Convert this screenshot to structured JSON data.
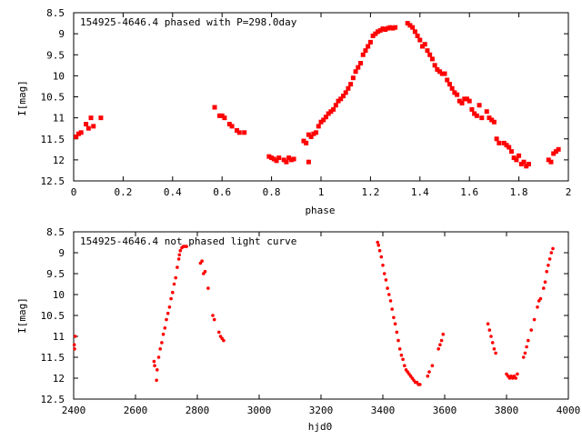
{
  "chart_data": [
    {
      "type": "scatter",
      "title": "154925-4646.4 phased with P=298.0day",
      "xlabel": "phase",
      "ylabel": "I[mag]",
      "xlim": [
        0,
        2
      ],
      "ylim": [
        12.5,
        8.5
      ],
      "y_inverted": true,
      "xticks": [
        "0",
        "0.2",
        "0.4",
        "0.6",
        "0.8",
        "1",
        "1.2",
        "1.4",
        "1.6",
        "1.8",
        "2"
      ],
      "yticks": [
        "8.5",
        "9",
        "9.5",
        "10",
        "10.5",
        "11",
        "11.5",
        "12",
        "12.5"
      ],
      "marker_color": "#ff0000",
      "points": [
        [
          0.01,
          11.45
        ],
        [
          0.02,
          11.38
        ],
        [
          0.03,
          11.35
        ],
        [
          0.05,
          11.15
        ],
        [
          0.06,
          11.25
        ],
        [
          0.07,
          11.0
        ],
        [
          0.08,
          11.2
        ],
        [
          0.11,
          11.0
        ],
        [
          0.57,
          10.75
        ],
        [
          0.59,
          10.95
        ],
        [
          0.6,
          10.95
        ],
        [
          0.61,
          11.0
        ],
        [
          0.63,
          11.15
        ],
        [
          0.64,
          11.2
        ],
        [
          0.66,
          11.3
        ],
        [
          0.67,
          11.35
        ],
        [
          0.69,
          11.35
        ],
        [
          0.79,
          11.92
        ],
        [
          0.8,
          11.95
        ],
        [
          0.81,
          11.98
        ],
        [
          0.82,
          12.02
        ],
        [
          0.83,
          11.95
        ],
        [
          0.85,
          12.0
        ],
        [
          0.86,
          12.05
        ],
        [
          0.87,
          11.95
        ],
        [
          0.88,
          12.0
        ],
        [
          0.89,
          11.98
        ],
        [
          0.93,
          11.55
        ],
        [
          0.94,
          11.6
        ],
        [
          0.95,
          11.4
        ],
        [
          0.96,
          11.45
        ],
        [
          0.97,
          11.38
        ],
        [
          0.98,
          11.35
        ],
        [
          0.99,
          11.2
        ],
        [
          1.0,
          11.1
        ],
        [
          0.95,
          12.05
        ],
        [
          1.01,
          11.05
        ],
        [
          1.02,
          10.98
        ],
        [
          1.03,
          10.9
        ],
        [
          1.04,
          10.85
        ],
        [
          1.05,
          10.8
        ],
        [
          1.06,
          10.7
        ],
        [
          1.07,
          10.6
        ],
        [
          1.08,
          10.55
        ],
        [
          1.09,
          10.48
        ],
        [
          1.1,
          10.4
        ],
        [
          1.11,
          10.3
        ],
        [
          1.12,
          10.2
        ],
        [
          1.13,
          10.05
        ],
        [
          1.14,
          9.9
        ],
        [
          1.15,
          9.8
        ],
        [
          1.16,
          9.7
        ],
        [
          1.17,
          9.5
        ],
        [
          1.18,
          9.4
        ],
        [
          1.19,
          9.3
        ],
        [
          1.2,
          9.2
        ],
        [
          1.21,
          9.05
        ],
        [
          1.22,
          9.0
        ],
        [
          1.23,
          8.95
        ],
        [
          1.24,
          8.92
        ],
        [
          1.25,
          8.88
        ],
        [
          1.26,
          8.9
        ],
        [
          1.27,
          8.87
        ],
        [
          1.28,
          8.85
        ],
        [
          1.29,
          8.87
        ],
        [
          1.3,
          8.85
        ],
        [
          1.35,
          8.75
        ],
        [
          1.36,
          8.8
        ],
        [
          1.37,
          8.85
        ],
        [
          1.38,
          8.95
        ],
        [
          1.39,
          9.05
        ],
        [
          1.4,
          9.15
        ],
        [
          1.41,
          9.3
        ],
        [
          1.42,
          9.25
        ],
        [
          1.43,
          9.4
        ],
        [
          1.44,
          9.5
        ],
        [
          1.45,
          9.6
        ],
        [
          1.46,
          9.75
        ],
        [
          1.47,
          9.85
        ],
        [
          1.48,
          9.9
        ],
        [
          1.49,
          9.95
        ],
        [
          1.5,
          9.95
        ],
        [
          1.51,
          10.1
        ],
        [
          1.52,
          10.2
        ],
        [
          1.53,
          10.3
        ],
        [
          1.54,
          10.4
        ],
        [
          1.55,
          10.45
        ],
        [
          1.56,
          10.6
        ],
        [
          1.57,
          10.65
        ],
        [
          1.58,
          10.55
        ],
        [
          1.59,
          10.55
        ],
        [
          1.6,
          10.6
        ],
        [
          1.61,
          10.8
        ],
        [
          1.62,
          10.9
        ],
        [
          1.63,
          10.95
        ],
        [
          1.64,
          10.7
        ],
        [
          1.65,
          11.0
        ],
        [
          1.67,
          10.85
        ],
        [
          1.68,
          11.0
        ],
        [
          1.69,
          11.05
        ],
        [
          1.7,
          11.1
        ],
        [
          1.71,
          11.5
        ],
        [
          1.72,
          11.6
        ],
        [
          1.74,
          11.6
        ],
        [
          1.75,
          11.65
        ],
        [
          1.76,
          11.7
        ],
        [
          1.77,
          11.8
        ],
        [
          1.78,
          11.95
        ],
        [
          1.79,
          12.0
        ],
        [
          1.8,
          11.9
        ],
        [
          1.81,
          12.1
        ],
        [
          1.82,
          12.05
        ],
        [
          1.83,
          12.15
        ],
        [
          1.84,
          12.1
        ],
        [
          1.92,
          12.0
        ],
        [
          1.93,
          12.05
        ],
        [
          1.94,
          11.85
        ],
        [
          1.95,
          11.8
        ],
        [
          1.96,
          11.75
        ]
      ]
    },
    {
      "type": "scatter",
      "title": "154925-4646.4 not phased light curve",
      "xlabel": "hjd0",
      "ylabel": "I[mag]",
      "xlim": [
        2400,
        4000
      ],
      "ylim": [
        12.5,
        8.5
      ],
      "y_inverted": true,
      "xticks": [
        "2400",
        "2600",
        "2800",
        "3000",
        "3200",
        "3400",
        "3600",
        "3800",
        "4000"
      ],
      "yticks": [
        "8.5",
        "9",
        "9.5",
        "10",
        "10.5",
        "11",
        "11.5",
        "12",
        "12.5"
      ],
      "marker_color": "#ff0000",
      "points": [
        [
          2402,
          11.2
        ],
        [
          2403,
          11.3
        ],
        [
          2405,
          11.0
        ],
        [
          2660,
          11.6
        ],
        [
          2662,
          11.7
        ],
        [
          2668,
          12.05
        ],
        [
          2670,
          11.8
        ],
        [
          2675,
          11.5
        ],
        [
          2680,
          11.3
        ],
        [
          2685,
          11.15
        ],
        [
          2690,
          10.95
        ],
        [
          2695,
          10.8
        ],
        [
          2700,
          10.6
        ],
        [
          2705,
          10.45
        ],
        [
          2710,
          10.3
        ],
        [
          2715,
          10.1
        ],
        [
          2720,
          9.95
        ],
        [
          2725,
          9.75
        ],
        [
          2730,
          9.6
        ],
        [
          2735,
          9.35
        ],
        [
          2740,
          9.15
        ],
        [
          2742,
          9.05
        ],
        [
          2745,
          8.95
        ],
        [
          2750,
          8.88
        ],
        [
          2755,
          8.85
        ],
        [
          2760,
          8.85
        ],
        [
          2765,
          8.85
        ],
        [
          2810,
          9.25
        ],
        [
          2815,
          9.2
        ],
        [
          2820,
          9.5
        ],
        [
          2825,
          9.45
        ],
        [
          2835,
          9.85
        ],
        [
          2850,
          10.5
        ],
        [
          2855,
          10.6
        ],
        [
          2870,
          10.9
        ],
        [
          2875,
          11.0
        ],
        [
          2880,
          11.05
        ],
        [
          2885,
          11.1
        ],
        [
          3383,
          8.75
        ],
        [
          3386,
          8.82
        ],
        [
          3390,
          8.95
        ],
        [
          3395,
          9.1
        ],
        [
          3400,
          9.3
        ],
        [
          3405,
          9.5
        ],
        [
          3410,
          9.65
        ],
        [
          3415,
          9.85
        ],
        [
          3420,
          10.0
        ],
        [
          3425,
          10.15
        ],
        [
          3430,
          10.35
        ],
        [
          3435,
          10.55
        ],
        [
          3440,
          10.7
        ],
        [
          3445,
          10.9
        ],
        [
          3450,
          11.1
        ],
        [
          3455,
          11.3
        ],
        [
          3460,
          11.45
        ],
        [
          3465,
          11.55
        ],
        [
          3470,
          11.7
        ],
        [
          3475,
          11.8
        ],
        [
          3480,
          11.85
        ],
        [
          3485,
          11.9
        ],
        [
          3490,
          11.95
        ],
        [
          3495,
          12.0
        ],
        [
          3500,
          12.05
        ],
        [
          3505,
          12.1
        ],
        [
          3510,
          12.1
        ],
        [
          3515,
          12.15
        ],
        [
          3520,
          12.15
        ],
        [
          3545,
          11.95
        ],
        [
          3550,
          11.85
        ],
        [
          3560,
          11.7
        ],
        [
          3580,
          11.3
        ],
        [
          3585,
          11.2
        ],
        [
          3590,
          11.1
        ],
        [
          3595,
          10.95
        ],
        [
          3740,
          10.7
        ],
        [
          3745,
          10.85
        ],
        [
          3750,
          11.0
        ],
        [
          3755,
          11.15
        ],
        [
          3760,
          11.3
        ],
        [
          3765,
          11.4
        ],
        [
          3800,
          11.9
        ],
        [
          3805,
          11.95
        ],
        [
          3810,
          12.0
        ],
        [
          3815,
          11.95
        ],
        [
          3820,
          12.0
        ],
        [
          3825,
          11.95
        ],
        [
          3830,
          12.0
        ],
        [
          3835,
          11.9
        ],
        [
          3855,
          11.5
        ],
        [
          3860,
          11.4
        ],
        [
          3865,
          11.25
        ],
        [
          3870,
          11.1
        ],
        [
          3880,
          10.85
        ],
        [
          3890,
          10.6
        ],
        [
          3900,
          10.3
        ],
        [
          3905,
          10.15
        ],
        [
          3910,
          10.1
        ],
        [
          3920,
          9.85
        ],
        [
          3925,
          9.7
        ],
        [
          3930,
          9.45
        ],
        [
          3935,
          9.3
        ],
        [
          3940,
          9.15
        ],
        [
          3945,
          9.0
        ],
        [
          3950,
          8.9
        ]
      ]
    }
  ]
}
